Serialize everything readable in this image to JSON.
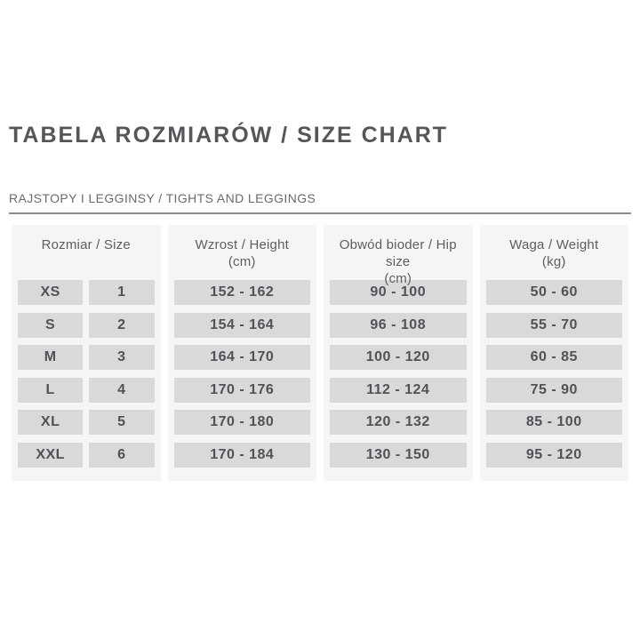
{
  "title": "TABELA ROZMIARÓW / SIZE CHART",
  "section_label": "RAJSTOPY I LEGGINSY / TIGHTS AND LEGGINGS",
  "colors": {
    "panel_bg": "#f5f5f6",
    "cell_bg": "#d9d9da",
    "text": "#55565a",
    "rule": "#8e8e90"
  },
  "table": {
    "columns": [
      {
        "label": "Rozmiar / Size",
        "unit": ""
      },
      {
        "label": "Wzrost / Height",
        "unit": "(cm)"
      },
      {
        "label": "Obwód bioder / Hip size",
        "unit": "(cm)"
      },
      {
        "label": "Waga / Weight",
        "unit": "(kg)"
      }
    ],
    "rows": [
      {
        "size": "XS",
        "size_number": "1",
        "height": "152 - 162",
        "hip": "90 - 100",
        "weight": "50 - 60"
      },
      {
        "size": "S",
        "size_number": "2",
        "height": "154 - 164",
        "hip": "96 - 108",
        "weight": "55 - 70"
      },
      {
        "size": "M",
        "size_number": "3",
        "height": "164 - 170",
        "hip": "100 - 120",
        "weight": "60 - 85"
      },
      {
        "size": "L",
        "size_number": "4",
        "height": "170 - 176",
        "hip": "112 - 124",
        "weight": "75 - 90"
      },
      {
        "size": "XL",
        "size_number": "5",
        "height": "170 - 180",
        "hip": "120 - 132",
        "weight": "85 - 100"
      },
      {
        "size": "XXL",
        "size_number": "6",
        "height": "170 - 184",
        "hip": "130 - 150",
        "weight": "95 - 120"
      }
    ]
  }
}
